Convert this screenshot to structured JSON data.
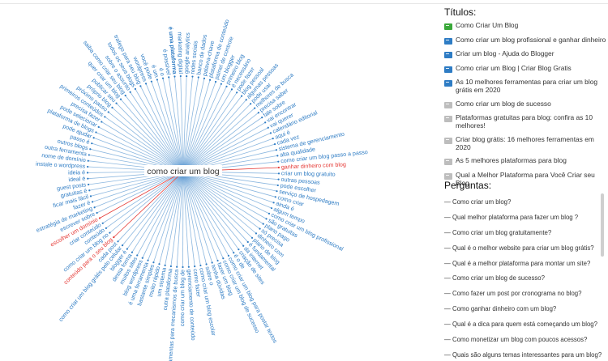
{
  "radial_chart": {
    "center_label": "como criar um blog",
    "colors": {
      "normal": "#2e7cc4",
      "highlight": "#e53935",
      "hub": "#2e7cc4"
    },
    "labels": [
      {
        "text": "como criar um blog passo a passo",
        "highlight": false
      },
      {
        "text": "ganhar dinheiro com blog",
        "highlight": true
      },
      {
        "text": "criar um blog gratuito",
        "highlight": false
      },
      {
        "text": "outras pessoas",
        "highlight": false
      },
      {
        "text": "pode escolher",
        "highlight": false
      },
      {
        "text": "serviço de hospedagem",
        "highlight": false
      },
      {
        "text": "como criar",
        "highlight": false
      },
      {
        "text": "ainda é",
        "highlight": false
      },
      {
        "text": "algum tempo",
        "highlight": false
      },
      {
        "text": "como criar um blog profissional",
        "highlight": false
      },
      {
        "text": "são gratuitas",
        "highlight": false
      },
      {
        "text": "plano pago",
        "highlight": false
      },
      {
        "text": "só precisa",
        "highlight": false
      },
      {
        "text": "dinheiro com",
        "highlight": false
      },
      {
        "text": "plano de blog",
        "highlight": false
      },
      {
        "text": "é fundamental",
        "highlight": false
      },
      {
        "text": "da internet",
        "highlight": false
      },
      {
        "text": "criação de sites",
        "highlight": false
      },
      {
        "text": "é o de",
        "highlight": false
      },
      {
        "text": "como criar um blog para postar textos",
        "highlight": false
      },
      {
        "text": "como criar um blog de sucesso",
        "highlight": false
      },
      {
        "text": "fazer um blog",
        "highlight": false
      },
      {
        "text": "tenha dúvidas",
        "highlight": false
      },
      {
        "text": "sobre o",
        "highlight": false
      },
      {
        "text": "como criar um blog escolar",
        "highlight": false
      },
      {
        "text": "como fazer",
        "highlight": false
      },
      {
        "text": "gerenciamento de conteúdo",
        "highlight": false
      },
      {
        "text": "como criar um blog de",
        "highlight": false
      },
      {
        "text": "ferramentas para mecanismos de busca",
        "highlight": false
      },
      {
        "text": "outra plataforma",
        "highlight": false
      },
      {
        "text": "um sistema",
        "highlight": false
      },
      {
        "text": "muito rápido",
        "highlight": false
      },
      {
        "text": "bastante simples",
        "highlight": false
      },
      {
        "text": "é uma ferramenta",
        "highlight": false
      },
      {
        "text": "blog wordpress",
        "highlight": false
      },
      {
        "text": "muitos sites",
        "highlight": false
      },
      {
        "text": "dessa forma",
        "highlight": false
      },
      {
        "text": "blogger é",
        "highlight": false
      },
      {
        "text": "como criar um blog grátis pelo celular",
        "highlight": false
      },
      {
        "text": "cada post",
        "highlight": false
      },
      {
        "text": "conteúdo para o seu blog",
        "highlight": true
      },
      {
        "text": "como criar um blog no",
        "highlight": false
      },
      {
        "text": "conteúdo",
        "highlight": false
      },
      {
        "text": "criar conteúdo",
        "highlight": false
      },
      {
        "text": "escolher um domínio",
        "highlight": true
      },
      {
        "text": "escrever sobre",
        "highlight": false
      },
      {
        "text": "estratégia de marketing",
        "highlight": false
      },
      {
        "text": "fazer é",
        "highlight": false
      },
      {
        "text": "ficar mais fácil",
        "highlight": false
      },
      {
        "text": "gratuitas é",
        "highlight": false
      },
      {
        "text": "guest posts",
        "highlight": false
      },
      {
        "text": "ideal é",
        "highlight": false
      },
      {
        "text": "ideia é",
        "highlight": false
      },
      {
        "text": "instale o wordpress",
        "highlight": false
      },
      {
        "text": "nome de domínio",
        "highlight": false
      },
      {
        "text": "outra ferramenta",
        "highlight": false
      },
      {
        "text": "outros blogs",
        "highlight": false
      },
      {
        "text": "passo é",
        "highlight": false
      },
      {
        "text": "pode ajudar",
        "highlight": false
      },
      {
        "text": "plataforma de blogs",
        "highlight": false
      },
      {
        "text": "pode selecionar",
        "highlight": false
      },
      {
        "text": "precisa fazer",
        "highlight": false
      },
      {
        "text": "primeiros conteúdos",
        "highlight": false
      },
      {
        "text": "próximo passo",
        "highlight": false
      },
      {
        "text": "próprio blog",
        "highlight": false
      },
      {
        "text": "publicar seu",
        "highlight": false
      },
      {
        "text": "quer criar um blog",
        "highlight": false
      },
      {
        "text": "saiba como criar seu blog",
        "highlight": false
      },
      {
        "text": "sobre o assunto",
        "highlight": false
      },
      {
        "text": "todos os seus blogs",
        "highlight": false
      },
      {
        "text": "trafego para seu blog",
        "highlight": false
      },
      {
        "text": "wordpress",
        "highlight": false
      },
      {
        "text": "você pode",
        "highlight": false
      },
      {
        "text": "é um",
        "highlight": false
      },
      {
        "text": "é o",
        "highlight": false
      },
      {
        "text": "é possível",
        "highlight": false
      },
      {
        "text": "é uma plataforma",
        "highlight": false,
        "bold": true
      },
      {
        "text": "marketing digital",
        "highlight": false
      },
      {
        "text": "google analytics",
        "highlight": false
      },
      {
        "text": "redes sociais",
        "highlight": false
      },
      {
        "text": "banco de dados",
        "highlight": false
      },
      {
        "text": "palavra-chave",
        "highlight": false
      },
      {
        "text": "plataforma de conteúdo",
        "highlight": false
      },
      {
        "text": "painel de controle",
        "highlight": false
      },
      {
        "text": "um blogger",
        "highlight": false
      },
      {
        "text": "primeiro blog",
        "highlight": false
      },
      {
        "text": "é necessário",
        "highlight": false
      },
      {
        "text": "pode fazer",
        "highlight": false
      },
      {
        "text": "blog pessoal",
        "highlight": false
      },
      {
        "text": "algumas pessoas",
        "highlight": false
      },
      {
        "text": "pode usar",
        "highlight": false
      },
      {
        "text": "melhores de busca",
        "highlight": false
      },
      {
        "text": "precisa saber",
        "highlight": false
      },
      {
        "text": "fale sobre",
        "highlight": false
      },
      {
        "text": "vai encontrar",
        "highlight": false
      },
      {
        "text": "vai querer",
        "highlight": false
      },
      {
        "text": "calendário editorial",
        "highlight": false
      },
      {
        "text": "aqui é",
        "highlight": false
      },
      {
        "text": "cada vez",
        "highlight": false
      },
      {
        "text": "sistema de gerenciamento",
        "highlight": false
      },
      {
        "text": "alta qualidade",
        "highlight": false
      }
    ]
  },
  "sidebar": {
    "titles_heading": "Títulos:",
    "titles": [
      {
        "text": "Como Criar Um Blog",
        "icon": "green-flag-icon",
        "color": "#3aa83a"
      },
      {
        "text": "Como criar um blog profissional e ganhar dinheiro",
        "icon": "blue-flag-icon",
        "color": "#2e7cc4"
      },
      {
        "text": "Criar um blog - Ajuda do Blogger",
        "icon": "blue-flag-icon",
        "color": "#2e7cc4"
      },
      {
        "text": "Como criar um Blog | Criar Blog Gratis",
        "icon": "blue-flag-icon",
        "color": "#2e7cc4"
      },
      {
        "text": "As 10 melhores ferramentas para criar um blog grátis em 2020",
        "icon": "blue-flag-icon",
        "color": "#2e7cc4"
      },
      {
        "text": "Como criar um blog de sucesso",
        "icon": "gray-flag-icon",
        "color": "#bdbdbd"
      },
      {
        "text": "Plataformas gratuitas para blog: confira as 10 melhores!",
        "icon": "gray-flag-icon",
        "color": "#bdbdbd"
      },
      {
        "text": "Criar blog grátis: 16 melhores ferramentas em 2020",
        "icon": "gray-flag-icon",
        "color": "#bdbdbd"
      },
      {
        "text": "As 5 melhores plataformas para blog",
        "icon": "gray-flag-icon",
        "color": "#bdbdbd"
      },
      {
        "text": "Qual a Melhor Plataforma para Você Criar seu Blog",
        "icon": "gray-flag-icon",
        "color": "#bdbdbd"
      }
    ],
    "questions_heading": "Perguntas:",
    "questions": [
      "— Como criar um blog?",
      "— Qual melhor plataforma para fazer um blog ?",
      "— Como criar um blog gratuitamente?",
      "— Qual é o melhor website para criar um blog grátis?",
      "— Qual é a melhor plataforma para montar um site?",
      "— Como criar um blog de sucesso?",
      "— Como fazer um post por cronograma no blog?",
      "— Como ganhar dinheiro com um blog?",
      "— Qual é a dica para quem está começando um blog?",
      "— Como monetizar um blog com poucos acessos?",
      "— Quais são alguns temas interessantes para um blog?"
    ]
  }
}
